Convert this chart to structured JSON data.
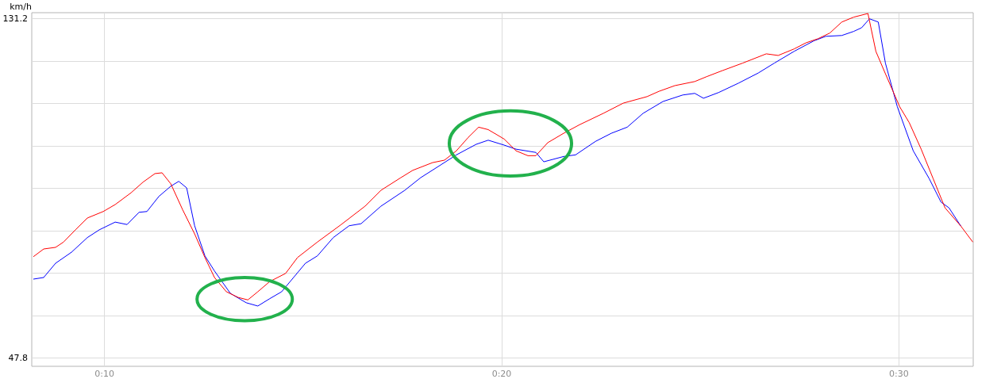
{
  "chart_data": {
    "type": "line",
    "ylabel": "km/h",
    "xlim": [
      8.17,
      31.87
    ],
    "ylim": [
      45.8,
      132.6
    ],
    "xticks": [
      {
        "value": 10,
        "label": "0:10"
      },
      {
        "value": 20,
        "label": "0:20"
      },
      {
        "value": 30,
        "label": "0:30"
      }
    ],
    "yticks": [
      47.8,
      {
        "value": 58.225,
        "label": null
      },
      {
        "value": 68.65,
        "label": null
      },
      {
        "value": 79.075,
        "label": null
      },
      {
        "value": 89.5,
        "label": null
      },
      {
        "value": 99.925,
        "label": null
      },
      {
        "value": 110.35,
        "label": null
      },
      {
        "value": 120.775,
        "label": null
      },
      131.2
    ],
    "grid": true,
    "marker": "none",
    "line_style": "solid",
    "series": [
      {
        "color": "#ff0000",
        "x": [
          8.21,
          8.47,
          8.77,
          8.97,
          9.27,
          9.57,
          9.97,
          10.27,
          10.67,
          10.97,
          11.27,
          11.45,
          11.67,
          11.97,
          12.27,
          12.53,
          12.77,
          13.07,
          13.37,
          13.61,
          13.86,
          14.16,
          14.56,
          14.86,
          15.36,
          15.96,
          16.56,
          16.96,
          17.46,
          17.76,
          18.26,
          18.56,
          18.86,
          19.16,
          19.42,
          19.66,
          20.06,
          20.36,
          20.66,
          20.86,
          21.16,
          21.56,
          21.96,
          22.56,
          23.06,
          23.66,
          23.96,
          24.36,
          24.86,
          25.16,
          25.56,
          26.06,
          26.66,
          26.96,
          27.36,
          27.66,
          27.96,
          28.26,
          28.56,
          28.86,
          29.22,
          29.42,
          29.66,
          30.02,
          30.26,
          30.56,
          30.86,
          31.16,
          31.56,
          31.86
        ],
        "values": [
          72.7,
          74.6,
          75.0,
          76.3,
          79.3,
          82.2,
          83.8,
          85.5,
          88.4,
          91.0,
          93.1,
          93.3,
          90.6,
          84.2,
          78.3,
          72.5,
          67.6,
          64.1,
          62.7,
          62.1,
          64.1,
          66.6,
          68.6,
          72.5,
          76.3,
          80.6,
          85.1,
          89.0,
          92.1,
          93.9,
          95.8,
          96.4,
          98.7,
          102.0,
          104.5,
          103.9,
          101.6,
          98.7,
          97.5,
          97.5,
          100.7,
          103.0,
          105.1,
          107.9,
          110.4,
          112.0,
          113.3,
          114.7,
          115.7,
          116.9,
          118.4,
          120.2,
          122.5,
          122.1,
          123.7,
          125.2,
          126.2,
          127.6,
          130.3,
          131.5,
          132.4,
          123.1,
          117.6,
          109.5,
          105.6,
          99.1,
          91.9,
          84.7,
          80.2,
          76.3
        ]
      },
      {
        "color": "#0000ff",
        "x": [
          8.21,
          8.47,
          8.77,
          9.17,
          9.57,
          9.87,
          10.27,
          10.57,
          10.87,
          11.07,
          11.37,
          11.67,
          11.87,
          12.07,
          12.27,
          12.53,
          12.77,
          13.17,
          13.57,
          13.86,
          14.16,
          14.46,
          14.76,
          15.06,
          15.36,
          15.76,
          16.16,
          16.46,
          16.96,
          17.56,
          17.96,
          18.46,
          18.86,
          19.36,
          19.66,
          20.06,
          20.36,
          20.86,
          21.06,
          21.56,
          21.86,
          22.36,
          22.76,
          23.16,
          23.56,
          24.06,
          24.56,
          24.86,
          25.08,
          25.46,
          25.96,
          26.46,
          26.86,
          27.36,
          27.86,
          28.16,
          28.56,
          28.86,
          29.06,
          29.26,
          29.48,
          29.66,
          29.96,
          30.36,
          30.76,
          31.06,
          31.26,
          31.56
        ],
        "values": [
          67.2,
          67.6,
          71.1,
          73.8,
          77.4,
          79.3,
          81.2,
          80.6,
          83.6,
          83.8,
          87.5,
          90.0,
          91.2,
          89.6,
          80.3,
          72.9,
          69.2,
          63.7,
          61.4,
          60.6,
          62.4,
          64.1,
          67.6,
          71.1,
          72.9,
          77.4,
          80.3,
          80.8,
          85.1,
          89.0,
          92.1,
          95.2,
          97.7,
          100.3,
          101.3,
          100.1,
          99.1,
          98.3,
          96.0,
          97.3,
          97.7,
          101.0,
          103.0,
          104.5,
          107.9,
          110.8,
          112.4,
          112.8,
          111.6,
          113.0,
          115.3,
          117.8,
          120.2,
          123.1,
          125.7,
          126.8,
          127.0,
          128.0,
          128.9,
          131.1,
          130.3,
          120.2,
          109.5,
          98.7,
          91.9,
          86.1,
          84.7,
          80.2
        ]
      }
    ]
  }
}
